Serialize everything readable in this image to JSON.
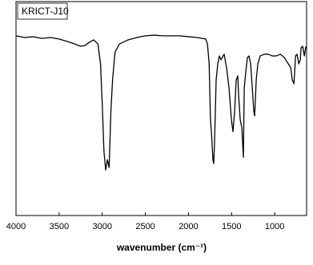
{
  "chart_data": {
    "type": "line",
    "title": "KRICT-J10",
    "xlabel": "wavenumber (cm⁻¹)",
    "x": [
      4000,
      3900,
      3800,
      3700,
      3600,
      3500,
      3400,
      3300,
      3250,
      3200,
      3150,
      3100,
      3050,
      3020,
      3000,
      2980,
      2960,
      2940,
      2920,
      2900,
      2880,
      2860,
      2850,
      2800,
      2700,
      2600,
      2500,
      2400,
      2300,
      2200,
      2100,
      2000,
      1900,
      1800,
      1780,
      1760,
      1745,
      1735,
      1716,
      1707,
      1698,
      1679,
      1660,
      1642,
      1623,
      1586,
      1558,
      1530,
      1502,
      1484,
      1465,
      1446,
      1428,
      1418,
      1400,
      1381,
      1363,
      1353,
      1335,
      1316,
      1298,
      1279,
      1260,
      1242,
      1232,
      1214,
      1195,
      1168,
      1121,
      1075,
      1028,
      982,
      935,
      889,
      842,
      814,
      796,
      777,
      768,
      758,
      740,
      721,
      703,
      694,
      675,
      656,
      638
    ],
    "values": [
      84,
      83.2,
      83.6,
      82.8,
      83.2,
      82.5,
      81.3,
      79.9,
      79.1,
      79.5,
      81,
      82.1,
      80.2,
      70.9,
      52.2,
      29.9,
      21.3,
      26.1,
      22.4,
      48.5,
      63.4,
      72.8,
      76.5,
      80.2,
      82.1,
      83.2,
      84,
      84.3,
      84,
      84,
      84,
      83.6,
      83.2,
      82.5,
      80.2,
      70.9,
      44.8,
      40,
      26,
      24.3,
      33.6,
      63.4,
      70.9,
      74.6,
      72.8,
      75.4,
      69,
      59.7,
      44.8,
      39.2,
      48.5,
      63.4,
      65.3,
      56,
      44.8,
      41,
      27.2,
      59.7,
      67.2,
      73.9,
      74.6,
      70.9,
      59.7,
      48.5,
      46.6,
      63.4,
      70.9,
      74.6,
      75.4,
      75.4,
      74.6,
      74.6,
      75.4,
      73.9,
      70.9,
      69,
      63.4,
      61.6,
      67.2,
      74.6,
      75.4,
      70.9,
      72.8,
      78.4,
      79.1,
      74.6,
      79.1
    ],
    "color": "#000000",
    "xlim": [
      4000,
      630
    ],
    "xticks": [
      4000,
      3500,
      3000,
      2500,
      2000,
      1500,
      1000
    ],
    "ylim": [
      0,
      100
    ]
  }
}
